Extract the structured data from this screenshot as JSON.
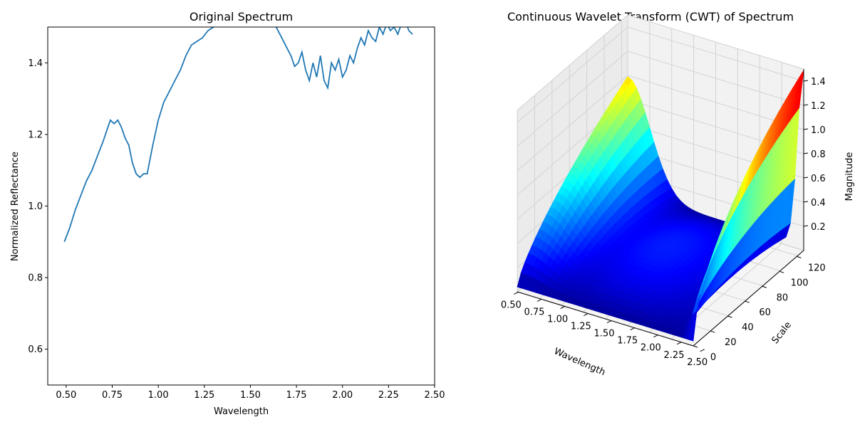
{
  "chart_data": [
    {
      "type": "line",
      "title": "Original Spectrum",
      "xlabel": "Wavelength",
      "ylabel": "Normalized Reflectance",
      "xlim": [
        0.4,
        2.5
      ],
      "ylim": [
        0.5,
        1.5
      ],
      "x_ticks": [
        "0.50",
        "0.75",
        "1.00",
        "1.25",
        "1.50",
        "1.75",
        "2.00",
        "2.25",
        "2.50"
      ],
      "y_ticks": [
        "0.6",
        "0.8",
        "1.0",
        "1.2",
        "1.4"
      ],
      "grid": false,
      "color": "#1f77b4",
      "series": [
        {
          "x": [
            0.49,
            0.52,
            0.55,
            0.58,
            0.61,
            0.64,
            0.67,
            0.7,
            0.72,
            0.74,
            0.76,
            0.78,
            0.8,
            0.82,
            0.84,
            0.86,
            0.88,
            0.9,
            0.92,
            0.94,
            0.97,
            1.0,
            1.03,
            1.06,
            1.09,
            1.12,
            1.15,
            1.18,
            1.21,
            1.24,
            1.27,
            1.3,
            1.33,
            1.36,
            1.4,
            1.45,
            1.5,
            1.55,
            1.6,
            1.64,
            1.67,
            1.7,
            1.72,
            1.74,
            1.76,
            1.78,
            1.8,
            1.82,
            1.84,
            1.86,
            1.88,
            1.9,
            1.92,
            1.94,
            1.96,
            1.98,
            2.0,
            2.02,
            2.04,
            2.06,
            2.08,
            2.1,
            2.12,
            2.14,
            2.16,
            2.18,
            2.2,
            2.22,
            2.24,
            2.26,
            2.28,
            2.3,
            2.32,
            2.34,
            2.36,
            2.38
          ],
          "y": [
            0.9,
            0.94,
            0.99,
            1.03,
            1.07,
            1.1,
            1.14,
            1.18,
            1.21,
            1.24,
            1.23,
            1.24,
            1.22,
            1.19,
            1.17,
            1.12,
            1.09,
            1.08,
            1.09,
            1.09,
            1.17,
            1.24,
            1.29,
            1.32,
            1.35,
            1.38,
            1.42,
            1.45,
            1.46,
            1.47,
            1.49,
            1.5,
            1.51,
            1.51,
            1.52,
            1.52,
            1.53,
            1.52,
            1.53,
            1.5,
            1.47,
            1.44,
            1.42,
            1.39,
            1.4,
            1.43,
            1.38,
            1.35,
            1.4,
            1.36,
            1.42,
            1.35,
            1.33,
            1.4,
            1.38,
            1.41,
            1.36,
            1.38,
            1.42,
            1.4,
            1.44,
            1.47,
            1.45,
            1.49,
            1.47,
            1.46,
            1.5,
            1.48,
            1.51,
            1.49,
            1.5,
            1.48,
            1.51,
            1.52,
            1.49,
            1.48
          ]
        }
      ]
    },
    {
      "type": "surface",
      "title": "Continuous Wavelet Transform (CWT) of Spectrum",
      "xlabel": "Wavelength",
      "ylabel": "Scale",
      "zlabel": "Magnitude",
      "x_ticks": [
        "0.50",
        "0.75",
        "1.00",
        "1.25",
        "1.50",
        "1.75",
        "2.00",
        "2.25",
        "2.50"
      ],
      "y_ticks": [
        "0",
        "20",
        "40",
        "60",
        "80",
        "100",
        "120"
      ],
      "z_ticks": [
        "0.2",
        "0.4",
        "0.6",
        "0.8",
        "1.0",
        "1.2",
        "1.4"
      ],
      "xlim": [
        0.49,
        2.38
      ],
      "ylim": [
        1,
        128
      ],
      "zlim": [
        0.0,
        1.5
      ],
      "colormap": "jet",
      "grid": true,
      "surface_profile": {
        "description_values": "magnitude rises toward large scales at the short-wavelength edge (~0.9) and sharply toward the long-wavelength edge (~1.45); low (~0.05-0.3) in the interior",
        "peak_low_wavelength_high_scale": 0.95,
        "peak_high_wavelength_high_scale": 1.45,
        "interior_level": 0.1
      }
    }
  ]
}
